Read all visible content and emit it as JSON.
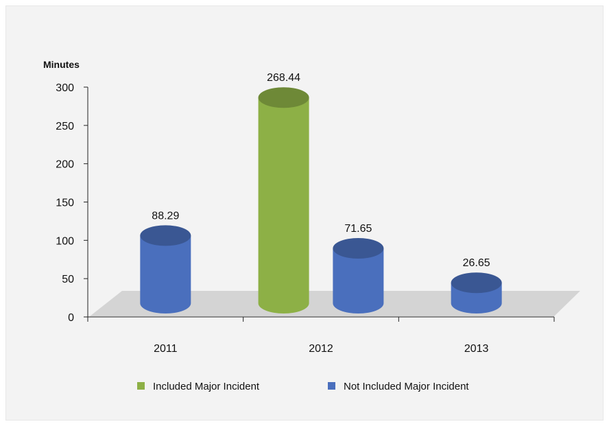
{
  "chart_data": {
    "type": "bar",
    "style": "3d-cylinder",
    "categories": [
      "2011",
      "2012",
      "2013"
    ],
    "ylabel": "Minutes",
    "ylim": [
      0,
      300
    ],
    "yticks": [
      0,
      50,
      100,
      150,
      200,
      250,
      300
    ],
    "series": [
      {
        "name": "Included Major Incident",
        "color": "#8db046",
        "values": [
          null,
          268.44,
          null
        ]
      },
      {
        "name": "Not Included Major Incident",
        "color": "#4a6fbd",
        "values": [
          88.29,
          71.65,
          26.65
        ]
      }
    ],
    "data_labels": [
      "88.29",
      "268.44",
      "71.65",
      "26.65"
    ],
    "legend_position": "bottom",
    "floor_color": "#d4d4d4"
  }
}
